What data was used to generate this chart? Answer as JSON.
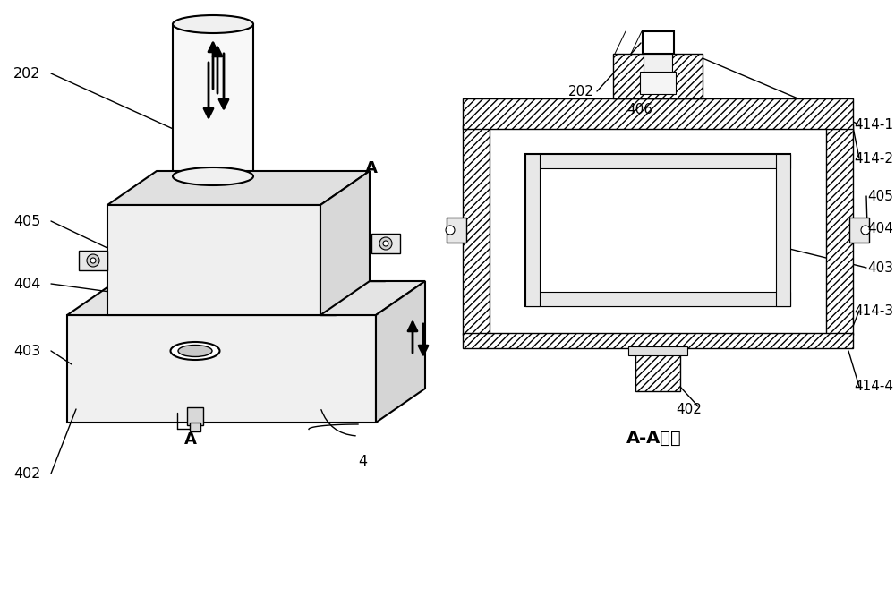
{
  "bg_color": "#ffffff",
  "line_color": "#000000",
  "fig_width": 10.0,
  "fig_height": 6.87,
  "cross_section_title": "A-A剑面"
}
